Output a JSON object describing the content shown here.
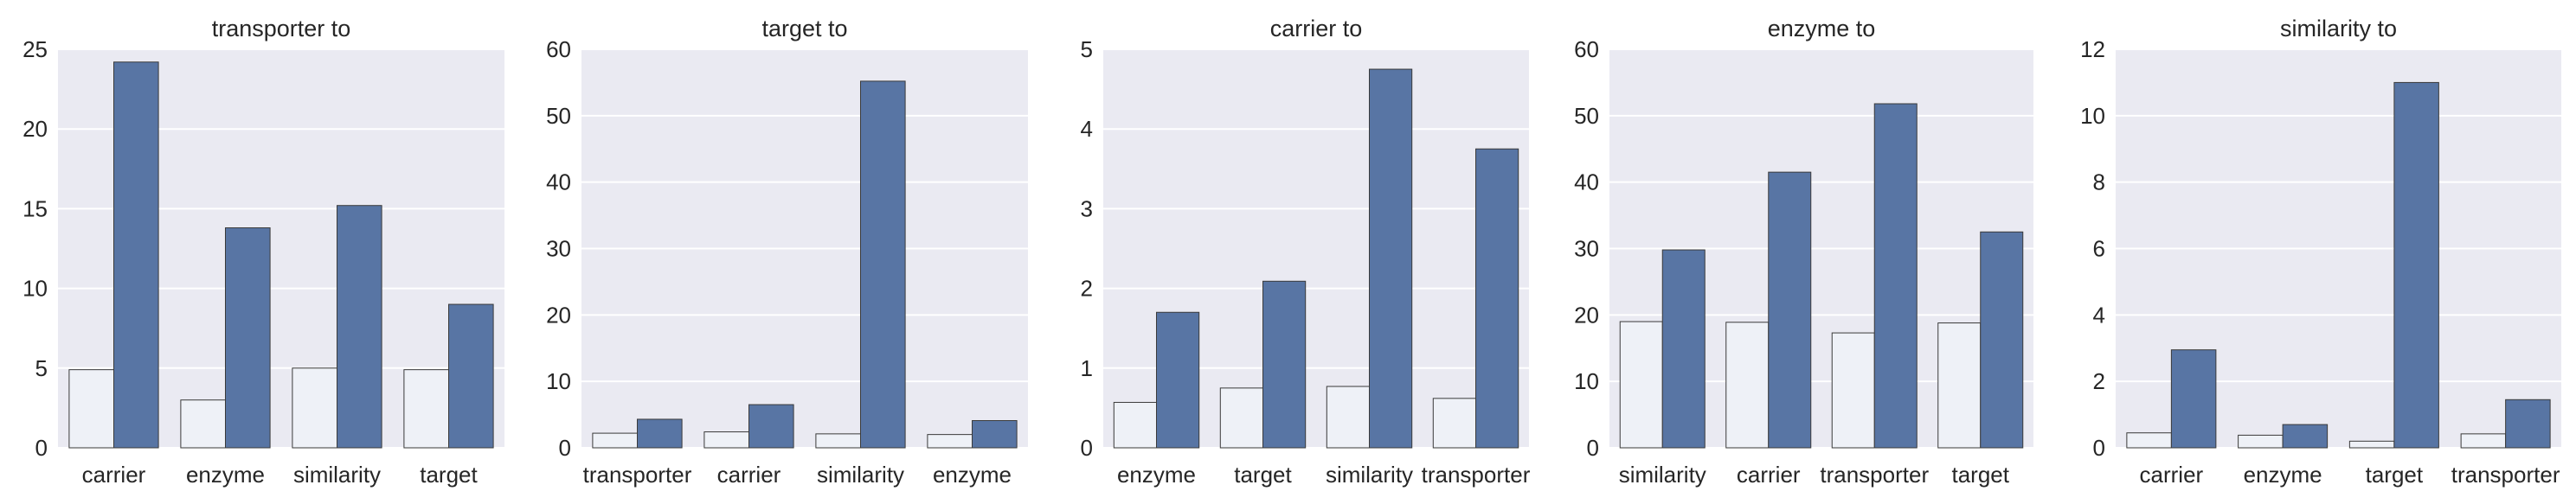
{
  "chart_data": [
    {
      "type": "bar",
      "title": "transporter to",
      "categories": [
        "carrier",
        "enzyme",
        "similarity",
        "target"
      ],
      "series": [
        {
          "color": "#eef1f7",
          "values": [
            4.9,
            3.0,
            5.0,
            4.9
          ]
        },
        {
          "color": "#5875a4",
          "values": [
            24.2,
            13.8,
            15.2,
            9.0
          ]
        }
      ],
      "ylim": [
        0,
        25
      ],
      "yticks": [
        0,
        5,
        10,
        15,
        20,
        25
      ]
    },
    {
      "type": "bar",
      "title": "target to",
      "categories": [
        "transporter",
        "carrier",
        "similarity",
        "enzyme"
      ],
      "series": [
        {
          "color": "#eef1f7",
          "values": [
            2.2,
            2.4,
            2.1,
            2.0
          ]
        },
        {
          "color": "#5875a4",
          "values": [
            4.3,
            6.5,
            55.2,
            4.1
          ]
        }
      ],
      "ylim": [
        0,
        60
      ],
      "yticks": [
        0,
        10,
        20,
        30,
        40,
        50,
        60
      ]
    },
    {
      "type": "bar",
      "title": "carrier to",
      "categories": [
        "enzyme",
        "target",
        "similarity",
        "transporter"
      ],
      "series": [
        {
          "color": "#eef1f7",
          "values": [
            0.57,
            0.75,
            0.77,
            0.62
          ]
        },
        {
          "color": "#5875a4",
          "values": [
            1.7,
            2.09,
            4.75,
            3.75
          ]
        }
      ],
      "ylim": [
        0,
        5
      ],
      "yticks": [
        0,
        1,
        2,
        3,
        4,
        5
      ]
    },
    {
      "type": "bar",
      "title": "enzyme to",
      "categories": [
        "similarity",
        "carrier",
        "transporter",
        "target"
      ],
      "series": [
        {
          "color": "#eef1f7",
          "values": [
            19.0,
            18.9,
            17.3,
            18.8
          ]
        },
        {
          "color": "#5875a4",
          "values": [
            29.8,
            41.5,
            51.8,
            32.5
          ]
        }
      ],
      "ylim": [
        0,
        60
      ],
      "yticks": [
        0,
        10,
        20,
        30,
        40,
        50,
        60
      ]
    },
    {
      "type": "bar",
      "title": "similarity to",
      "categories": [
        "carrier",
        "enzyme",
        "target",
        "transporter"
      ],
      "series": [
        {
          "color": "#eef1f7",
          "values": [
            0.45,
            0.38,
            0.2,
            0.42
          ]
        },
        {
          "color": "#5875a4",
          "values": [
            2.95,
            0.7,
            11.0,
            1.45
          ]
        }
      ],
      "ylim": [
        0,
        12
      ],
      "yticks": [
        0,
        2,
        4,
        6,
        8,
        10,
        12
      ]
    }
  ]
}
